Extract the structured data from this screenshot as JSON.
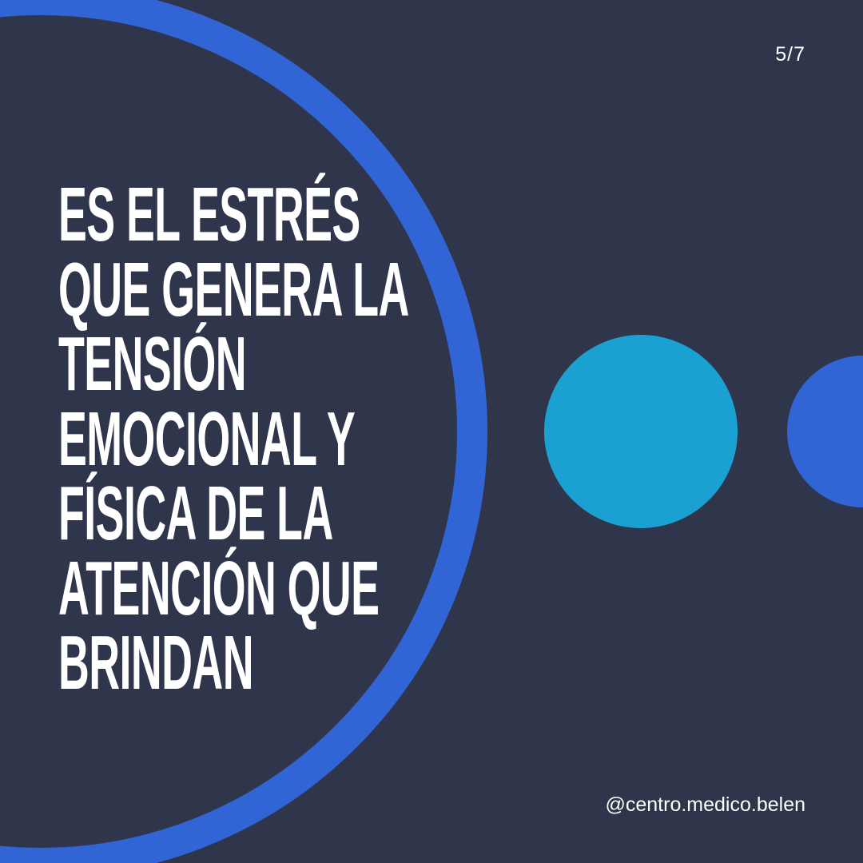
{
  "slide": {
    "counter": "5/7",
    "headline_lines": [
      "ES EL ESTRÉS",
      "QUE GENERA LA",
      "TENSIÓN",
      "EMOCIONAL Y",
      "FÍSICA DE LA",
      "ATENCIÓN QUE",
      "BRINDAN"
    ],
    "handle": "@centro.medico.belen"
  },
  "colors": {
    "background": "#2f354a",
    "ring": "#3165d5",
    "cyan_circle": "#1aa1d1",
    "blue_circle": "#3165d5",
    "text": "#ffffff"
  }
}
